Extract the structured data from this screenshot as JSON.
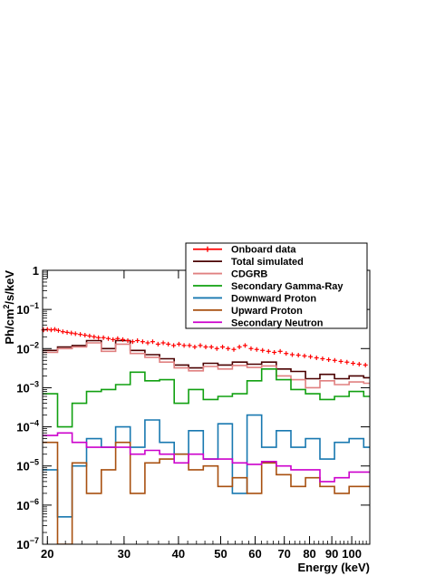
{
  "chart_data": {
    "type": "line",
    "title": "",
    "xlabel": "Energy (keV)",
    "ylabel": "Ph/cm²/s/keV",
    "ylabel_parts": [
      "Ph/cm",
      "2",
      "/s/keV"
    ],
    "xscale": "log",
    "yscale": "log",
    "xlim": [
      19.5,
      110
    ],
    "ylim": [
      1e-07,
      1
    ],
    "x_ticks": [
      20,
      30,
      40,
      50,
      60,
      70,
      80,
      90,
      100
    ],
    "x_tick_labels": [
      "20",
      "30",
      "40",
      "50",
      "60",
      "70",
      "80",
      "90",
      "100"
    ],
    "y_ticks": [
      {
        "value": 1,
        "base": "1",
        "exp": ""
      },
      {
        "value": 0.1,
        "base": "10",
        "exp": "−1"
      },
      {
        "value": 0.01,
        "base": "10",
        "exp": "−2"
      },
      {
        "value": 0.001,
        "base": "10",
        "exp": "−3"
      },
      {
        "value": 0.0001,
        "base": "10",
        "exp": "−4"
      },
      {
        "value": 1e-05,
        "base": "10",
        "exp": "−5"
      },
      {
        "value": 1e-06,
        "base": "10",
        "exp": "−6"
      },
      {
        "value": 1e-07,
        "base": "10",
        "exp": "−7"
      }
    ],
    "legend_placement": "top-right",
    "grid": false,
    "bin_edges": [
      19.5,
      21.1,
      22.8,
      24.6,
      26.6,
      28.7,
      31.0,
      33.5,
      36.2,
      39.1,
      42.2,
      45.6,
      49.3,
      53.2,
      57.5,
      62.1,
      67.1,
      72.5,
      78.3,
      84.5,
      91.3,
      98.6,
      106.5,
      110
    ],
    "onboard_data": {
      "name": "Onboard data",
      "color": "#ff0000",
      "points": [
        [
          19.6,
          0.03
        ],
        [
          20.0,
          0.031
        ],
        [
          20.4,
          0.03
        ],
        [
          20.8,
          0.031
        ],
        [
          21.2,
          0.029
        ],
        [
          21.7,
          0.027
        ],
        [
          22.2,
          0.026
        ],
        [
          22.7,
          0.025
        ],
        [
          23.2,
          0.024
        ],
        [
          23.8,
          0.023
        ],
        [
          24.4,
          0.022
        ],
        [
          25.0,
          0.021
        ],
        [
          25.6,
          0.02
        ],
        [
          26.2,
          0.019
        ],
        [
          26.9,
          0.019
        ],
        [
          27.6,
          0.018
        ],
        [
          28.3,
          0.017
        ],
        [
          29.0,
          0.018
        ],
        [
          29.8,
          0.017
        ],
        [
          30.6,
          0.016
        ],
        [
          31.4,
          0.015
        ],
        [
          32.2,
          0.016
        ],
        [
          33.1,
          0.015
        ],
        [
          34.0,
          0.014
        ],
        [
          34.9,
          0.015
        ],
        [
          35.9,
          0.013
        ],
        [
          36.9,
          0.014
        ],
        [
          37.9,
          0.013
        ],
        [
          39.0,
          0.012
        ],
        [
          40.1,
          0.013
        ],
        [
          41.2,
          0.012
        ],
        [
          42.4,
          0.012
        ],
        [
          43.6,
          0.011
        ],
        [
          44.9,
          0.012
        ],
        [
          46.2,
          0.011
        ],
        [
          47.6,
          0.011
        ],
        [
          49.0,
          0.01
        ],
        [
          50.5,
          0.011
        ],
        [
          52.0,
          0.01
        ],
        [
          53.6,
          0.0095
        ],
        [
          55.2,
          0.011
        ],
        [
          56.9,
          0.012
        ],
        [
          58.7,
          0.01
        ],
        [
          60.5,
          0.0095
        ],
        [
          62.4,
          0.009
        ],
        [
          64.4,
          0.0085
        ],
        [
          66.4,
          0.008
        ],
        [
          68.5,
          0.0085
        ],
        [
          70.7,
          0.0075
        ],
        [
          73.0,
          0.007
        ],
        [
          75.4,
          0.0068
        ],
        [
          77.9,
          0.0065
        ],
        [
          80.4,
          0.0062
        ],
        [
          83.0,
          0.0058
        ],
        [
          85.7,
          0.0055
        ],
        [
          88.5,
          0.0052
        ],
        [
          91.4,
          0.005
        ],
        [
          94.4,
          0.0047
        ],
        [
          97.5,
          0.0045
        ],
        [
          100.7,
          0.0042
        ],
        [
          104.0,
          0.004
        ],
        [
          107.5,
          0.0038
        ]
      ]
    },
    "series": [
      {
        "name": "Total simulated",
        "color": "#4a0000",
        "values": [
          0.009,
          0.011,
          0.012,
          0.016,
          0.01,
          0.016,
          0.009,
          0.007,
          0.0055,
          0.0038,
          0.0032,
          0.0042,
          0.0038,
          0.0045,
          0.004,
          0.0045,
          0.003,
          0.0026,
          0.0017,
          0.0022,
          0.0017,
          0.002,
          0.0018
        ]
      },
      {
        "name": "CDGRB",
        "color": "#e08080",
        "values": [
          0.008,
          0.01,
          0.011,
          0.014,
          0.0085,
          0.013,
          0.0075,
          0.006,
          0.0045,
          0.0032,
          0.0027,
          0.0035,
          0.003,
          0.0037,
          0.0033,
          0.0036,
          0.002,
          0.0016,
          0.001,
          0.0015,
          0.0012,
          0.0014,
          0.0013
        ]
      },
      {
        "name": "Secondary Gamma-Ray",
        "color": "#10a010",
        "values": [
          0.0007,
          0.0001,
          0.0004,
          0.0008,
          0.0009,
          0.0012,
          0.0025,
          0.0015,
          0.0016,
          0.0004,
          0.0009,
          0.0005,
          0.0006,
          0.0007,
          0.0015,
          0.003,
          0.0016,
          0.0009,
          0.0007,
          0.0005,
          0.0006,
          0.0008,
          0.0006
        ]
      },
      {
        "name": "Downward Proton",
        "color": "#1878b0",
        "values": [
          8e-06,
          5e-07,
          1e-05,
          5e-05,
          3e-05,
          0.0001,
          3e-05,
          0.00015,
          4e-05,
          2e-05,
          8e-05,
          1.5e-05,
          0.00012,
          2e-06,
          0.0002,
          3e-05,
          8e-05,
          3e-05,
          5e-05,
          1.5e-05,
          4e-05,
          5e-05,
          3e-05
        ]
      },
      {
        "name": "Upward Proton",
        "color": "#a85010",
        "values": [
          4e-05,
          1e-07,
          1.2e-05,
          2e-06,
          8e-06,
          4e-05,
          2e-06,
          1.2e-05,
          1.5e-05,
          2e-05,
          8e-06,
          1e-05,
          3e-06,
          5e-06,
          2e-06,
          1.2e-05,
          6e-06,
          3e-06,
          5e-06,
          3e-06,
          2e-06,
          3e-06,
          3e-06
        ]
      },
      {
        "name": "Secondary Neutron",
        "color": "#cc00cc",
        "values": [
          6e-05,
          7e-05,
          4e-05,
          3e-05,
          3e-05,
          3e-05,
          2e-05,
          2.5e-05,
          2e-05,
          1.2e-05,
          2e-05,
          1.5e-05,
          1.5e-05,
          1.2e-05,
          1.1e-05,
          1.3e-05,
          1e-05,
          8e-06,
          8e-06,
          4e-06,
          5e-06,
          7e-06,
          7e-06
        ]
      }
    ]
  }
}
